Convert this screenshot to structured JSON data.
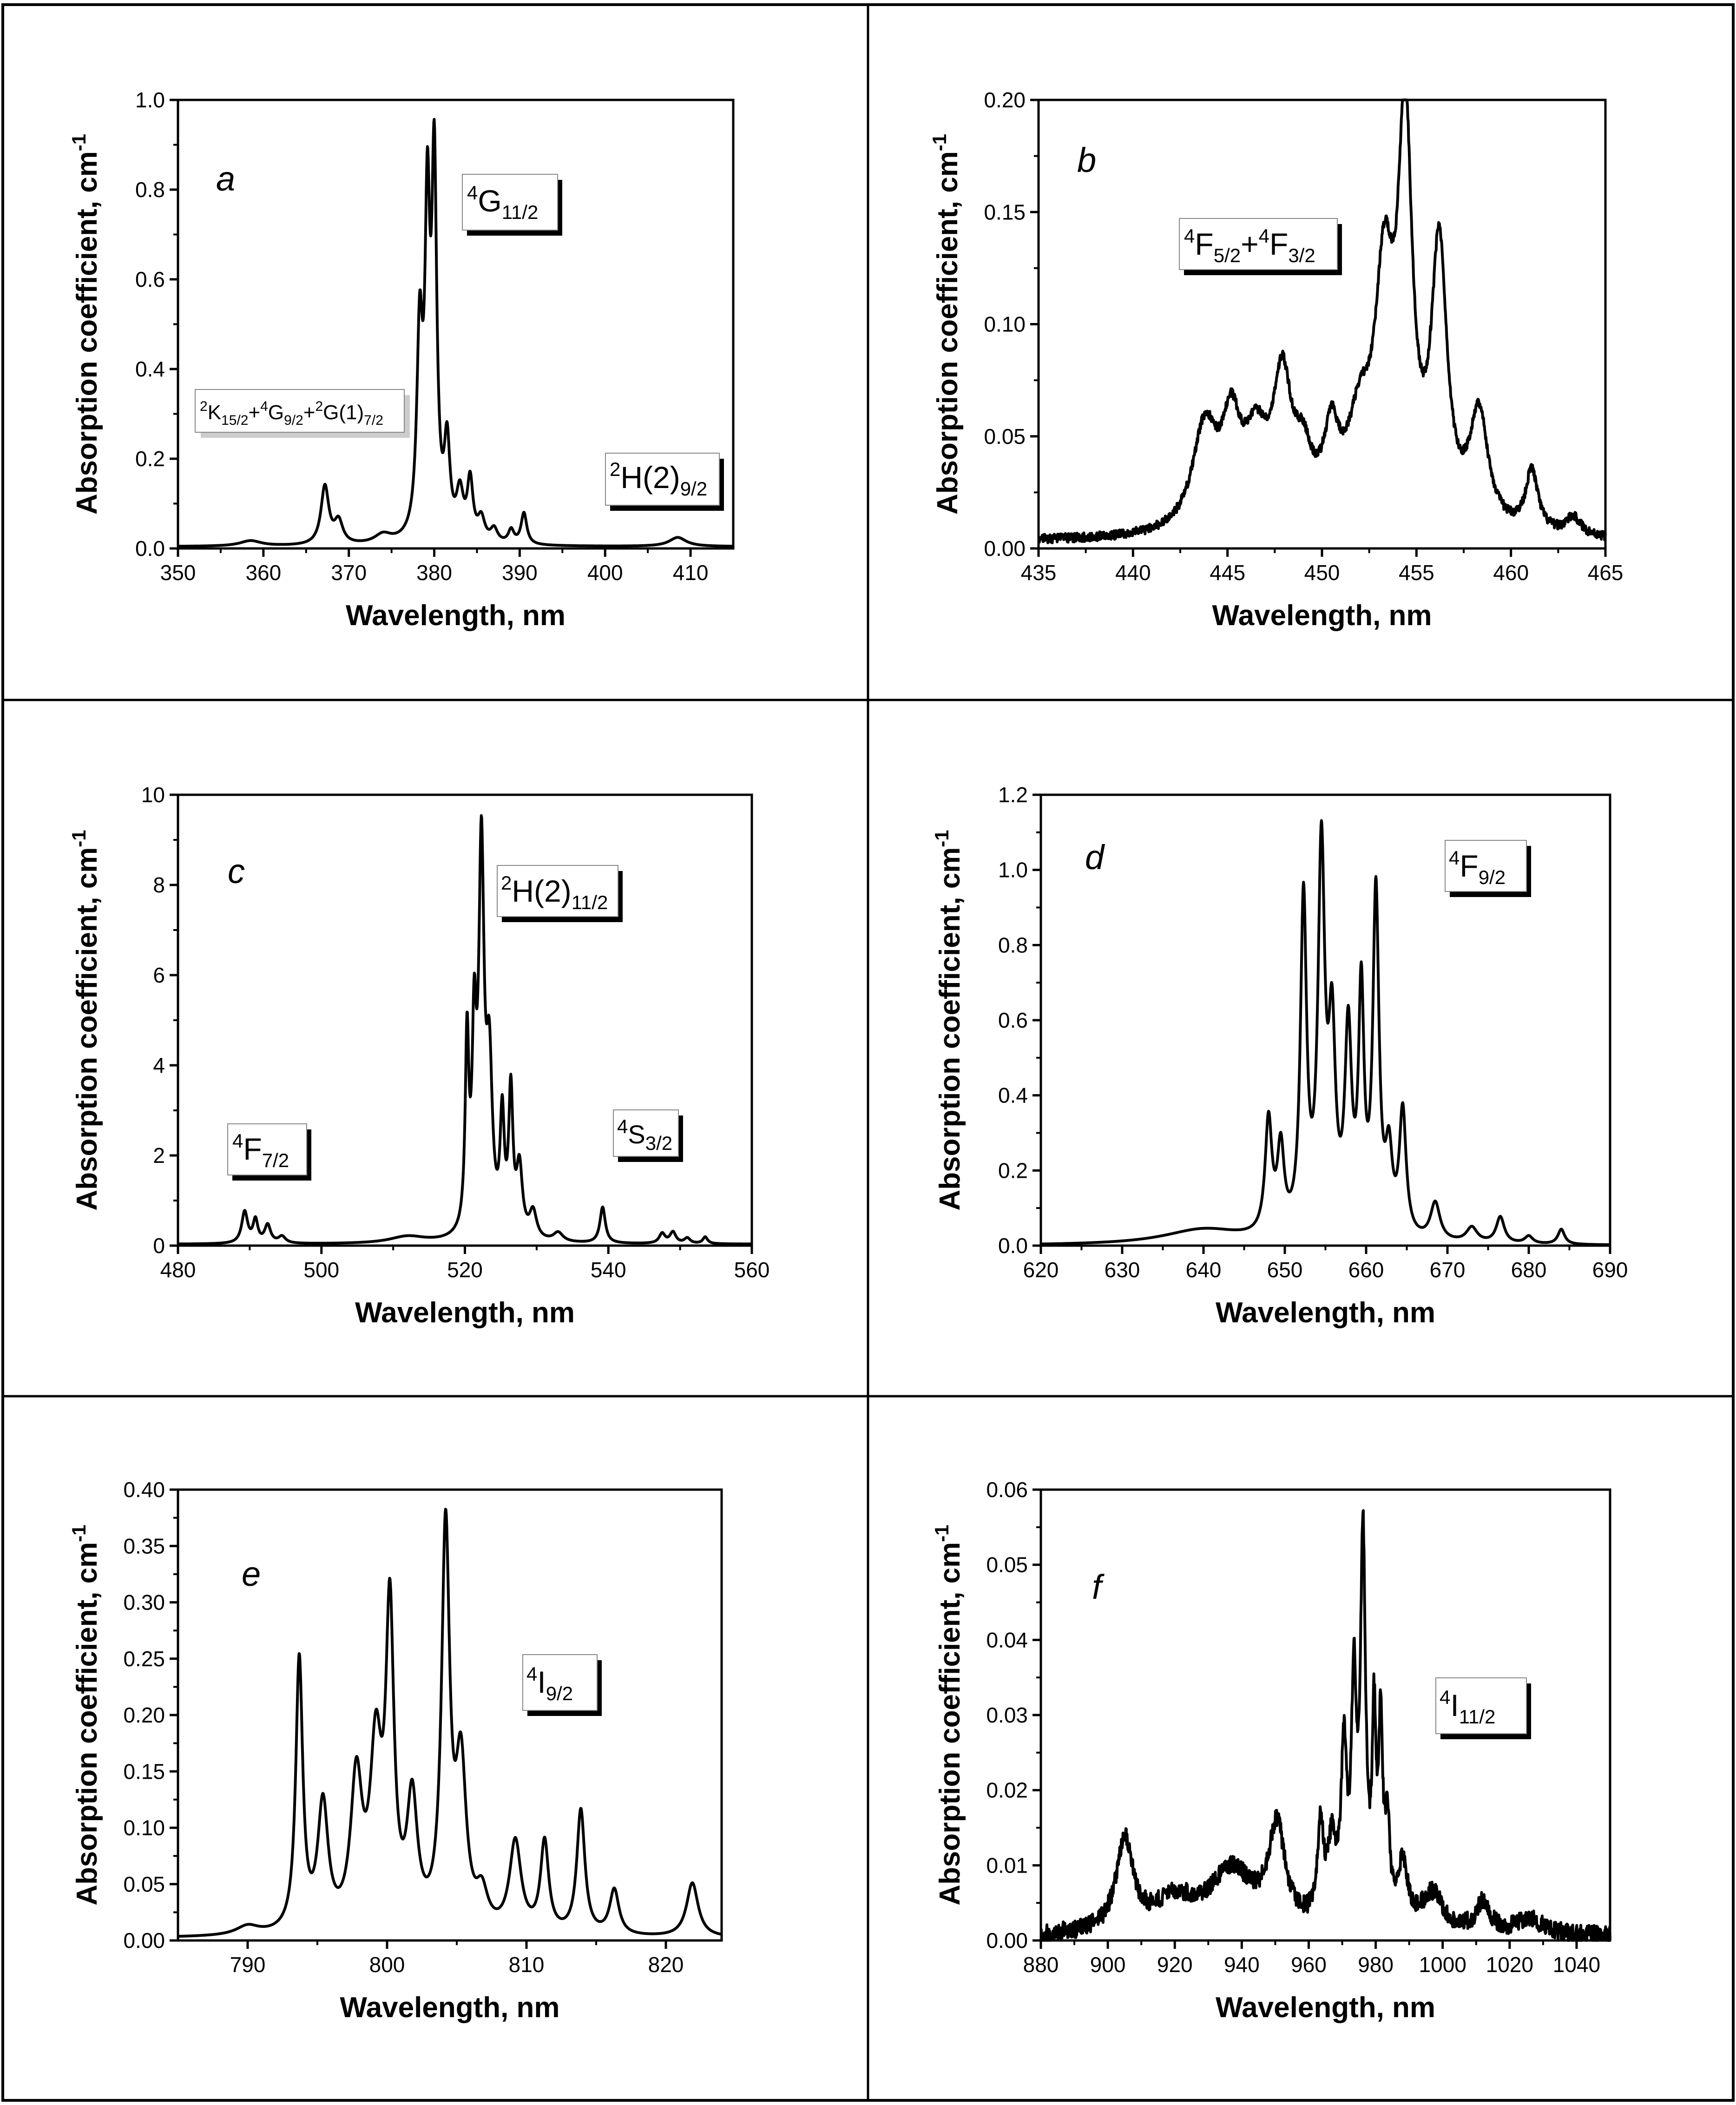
{
  "chart_data": [
    {
      "type": "line",
      "panel_letter": "a",
      "xlabel": "Wavelength, nm",
      "ylabel": "Absorption coefficient, cm",
      "ylabel_sup": "-1",
      "xlim": [
        350,
        415
      ],
      "ylim": [
        0,
        1.0
      ],
      "xticks": [
        "350",
        "360",
        "370",
        "380",
        "390",
        "400",
        "410"
      ],
      "yticks": [
        "0.0",
        "0.2",
        "0.4",
        "0.6",
        "0.8",
        "1.0"
      ],
      "baseline": 0.004,
      "peaks": [
        [
          358.5,
          0.012,
          1.5
        ],
        [
          367.2,
          0.13,
          0.55
        ],
        [
          368.8,
          0.05,
          0.6
        ],
        [
          374.0,
          0.02,
          1.2
        ],
        [
          378.3,
          0.44,
          0.4
        ],
        [
          379.2,
          0.68,
          0.35
        ],
        [
          380.0,
          0.8,
          0.35
        ],
        [
          381.5,
          0.2,
          0.4
        ],
        [
          383.0,
          0.1,
          0.5
        ],
        [
          384.2,
          0.13,
          0.4
        ],
        [
          385.5,
          0.05,
          0.5
        ],
        [
          387.0,
          0.03,
          0.5
        ],
        [
          389.0,
          0.03,
          0.4
        ],
        [
          390.5,
          0.07,
          0.4
        ],
        [
          408.5,
          0.02,
          1.2
        ]
      ],
      "annotations": [
        {
          "id": "a1",
          "sup": "2",
          "parts": [
            [
              "K",
              ""
            ],
            [
              "15/2",
              ""
            ]
          ],
          "text": "²K₁₅/₂+⁴G₉/₂+²G(1)₇/₂"
        },
        {
          "id": "a2",
          "text": "⁴G₁₁/₂"
        },
        {
          "id": "a3",
          "text": "²H(2)₉/₂"
        }
      ]
    },
    {
      "type": "line",
      "panel_letter": "b",
      "xlabel": "Wavelength, nm",
      "ylabel": "Absorption coefficient, cm",
      "ylabel_sup": "-1",
      "xlim": [
        435,
        465
      ],
      "ylim": [
        0,
        0.2
      ],
      "xticks": [
        "435",
        "440",
        "445",
        "450",
        "455",
        "460",
        "465"
      ],
      "yticks": [
        "0.00",
        "0.05",
        "0.10",
        "0.15",
        "0.20"
      ],
      "baseline": 0.003,
      "noise": 0.002,
      "peaks": [
        [
          443.8,
          0.045,
          0.8
        ],
        [
          445.2,
          0.04,
          0.6
        ],
        [
          446.5,
          0.035,
          0.8
        ],
        [
          447.9,
          0.06,
          0.6
        ],
        [
          449.0,
          0.025,
          0.6
        ],
        [
          450.5,
          0.035,
          0.5
        ],
        [
          452.0,
          0.04,
          0.8
        ],
        [
          453.3,
          0.1,
          0.6
        ],
        [
          454.4,
          0.17,
          0.45
        ],
        [
          456.2,
          0.12,
          0.5
        ],
        [
          458.3,
          0.05,
          0.6
        ],
        [
          461.1,
          0.027,
          0.4
        ],
        [
          463.3,
          0.008,
          0.5
        ]
      ],
      "annotations": [
        {
          "id": "b1",
          "text": "⁴F₅/₂+⁴F₃/₂"
        }
      ]
    },
    {
      "type": "line",
      "panel_letter": "c",
      "xlabel": "Wavelength, nm",
      "ylabel": "Absorption coefficient, cm",
      "ylabel_sup": "-1",
      "xlim": [
        480,
        560
      ],
      "ylim": [
        0,
        10
      ],
      "xticks": [
        "480",
        "500",
        "520",
        "540",
        "560"
      ],
      "yticks": [
        "0",
        "2",
        "4",
        "6",
        "8",
        "10"
      ],
      "baseline": 0.03,
      "peaks": [
        [
          489.3,
          0.7,
          0.5
        ],
        [
          490.8,
          0.5,
          0.4
        ],
        [
          492.5,
          0.4,
          0.5
        ],
        [
          494.5,
          0.15,
          0.6
        ],
        [
          512.0,
          0.15,
          3.0
        ],
        [
          520.3,
          4.2,
          0.3
        ],
        [
          521.3,
          4.0,
          0.35
        ],
        [
          522.3,
          8.3,
          0.45
        ],
        [
          523.4,
          3.5,
          0.5
        ],
        [
          525.2,
          2.5,
          0.35
        ],
        [
          526.4,
          3.1,
          0.35
        ],
        [
          527.6,
          1.5,
          0.5
        ],
        [
          529.5,
          0.6,
          0.6
        ],
        [
          533.0,
          0.2,
          0.8
        ],
        [
          539.2,
          0.8,
          0.45
        ],
        [
          547.5,
          0.22,
          0.5
        ],
        [
          549.0,
          0.25,
          0.5
        ],
        [
          551.0,
          0.12,
          0.5
        ],
        [
          553.5,
          0.15,
          0.4
        ]
      ],
      "annotations": [
        {
          "id": "c1",
          "text": "²H(2)₁₁/₂"
        },
        {
          "id": "c2",
          "text": "⁴F₇/₂"
        },
        {
          "id": "c3",
          "text": "⁴S₃/₂"
        }
      ]
    },
    {
      "type": "line",
      "panel_letter": "d",
      "xlabel": "Wavelength, nm",
      "ylabel": "Absorption coefficient, cm",
      "ylabel_sup": "-1",
      "xlim": [
        620,
        690
      ],
      "ylim": [
        0,
        1.2
      ],
      "xticks": [
        "620",
        "630",
        "640",
        "650",
        "660",
        "670",
        "680",
        "690"
      ],
      "yticks": [
        "0.0",
        "0.2",
        "0.4",
        "0.6",
        "0.8",
        "1.0",
        "1.2"
      ],
      "baseline": 0.0,
      "peaks": [
        [
          640.0,
          0.04,
          6.0
        ],
        [
          648.0,
          0.3,
          0.5
        ],
        [
          649.5,
          0.22,
          0.5
        ],
        [
          652.3,
          0.88,
          0.45
        ],
        [
          654.5,
          1.0,
          0.5
        ],
        [
          655.8,
          0.5,
          0.5
        ],
        [
          657.8,
          0.52,
          0.5
        ],
        [
          659.4,
          0.62,
          0.4
        ],
        [
          661.2,
          0.9,
          0.45
        ],
        [
          662.8,
          0.2,
          0.5
        ],
        [
          664.5,
          0.33,
          0.5
        ],
        [
          668.5,
          0.1,
          0.7
        ],
        [
          673.0,
          0.04,
          0.8
        ],
        [
          676.5,
          0.07,
          0.6
        ],
        [
          680.0,
          0.02,
          0.6
        ],
        [
          684.0,
          0.04,
          0.5
        ]
      ],
      "annotations": [
        {
          "id": "d1",
          "text": "⁴F₉/₂"
        }
      ]
    },
    {
      "type": "line",
      "panel_letter": "e",
      "xlabel": "Wavelength, nm",
      "ylabel": "Absorption coefficient, cm",
      "ylabel_sup": "-1",
      "xlim": [
        785,
        824
      ],
      "ylim": [
        0,
        0.4
      ],
      "xticks": [
        "790",
        "800",
        "810",
        "820"
      ],
      "yticks": [
        "0.00",
        "0.05",
        "0.10",
        "0.15",
        "0.20",
        "0.25",
        "0.30",
        "0.35",
        "0.40"
      ],
      "baseline": 0.002,
      "peaks": [
        [
          790.0,
          0.008,
          1.0
        ],
        [
          793.7,
          0.24,
          0.3
        ],
        [
          795.4,
          0.11,
          0.45
        ],
        [
          797.8,
          0.13,
          0.5
        ],
        [
          799.2,
          0.15,
          0.5
        ],
        [
          800.2,
          0.27,
          0.35
        ],
        [
          801.8,
          0.11,
          0.45
        ],
        [
          804.2,
          0.35,
          0.35
        ],
        [
          805.3,
          0.14,
          0.45
        ],
        [
          806.8,
          0.03,
          0.5
        ],
        [
          809.2,
          0.08,
          0.5
        ],
        [
          811.3,
          0.08,
          0.35
        ],
        [
          813.9,
          0.11,
          0.35
        ],
        [
          816.3,
          0.04,
          0.4
        ],
        [
          821.9,
          0.048,
          0.5
        ]
      ],
      "annotations": [
        {
          "id": "e1",
          "text": "⁴I₉/₂"
        }
      ]
    },
    {
      "type": "line",
      "panel_letter": "f",
      "xlabel": "Wavelength, nm",
      "ylabel": "Absorption coefficient, cm",
      "ylabel_sup": "-1",
      "xlim": [
        880,
        1050
      ],
      "ylim": [
        0,
        0.06
      ],
      "xticks": [
        "880",
        "900",
        "920",
        "940",
        "960",
        "980",
        "1000",
        "1020",
        "1040"
      ],
      "yticks": [
        "0.00",
        "0.01",
        "0.02",
        "0.03",
        "0.04",
        "0.05",
        "0.06"
      ],
      "baseline": 0.0005,
      "noise": 0.0012,
      "peaks": [
        [
          905.0,
          0.012,
          3.0
        ],
        [
          920.0,
          0.004,
          8.0
        ],
        [
          937.0,
          0.008,
          8.0
        ],
        [
          950.5,
          0.013,
          3.0
        ],
        [
          963.5,
          0.012,
          1.2
        ],
        [
          967.0,
          0.01,
          1.5
        ],
        [
          970.5,
          0.022,
          1.0
        ],
        [
          973.5,
          0.03,
          0.9
        ],
        [
          976.2,
          0.05,
          0.9
        ],
        [
          979.5,
          0.025,
          0.7
        ],
        [
          981.5,
          0.025,
          0.7
        ],
        [
          983.5,
          0.012,
          0.8
        ],
        [
          988.0,
          0.008,
          2.0
        ],
        [
          997.0,
          0.005,
          4.0
        ],
        [
          1012.0,
          0.004,
          2.5
        ],
        [
          1026.0,
          0.002,
          5.0
        ]
      ],
      "annotations": [
        {
          "id": "f1",
          "text": "⁴I₁₁/₂"
        }
      ]
    }
  ]
}
